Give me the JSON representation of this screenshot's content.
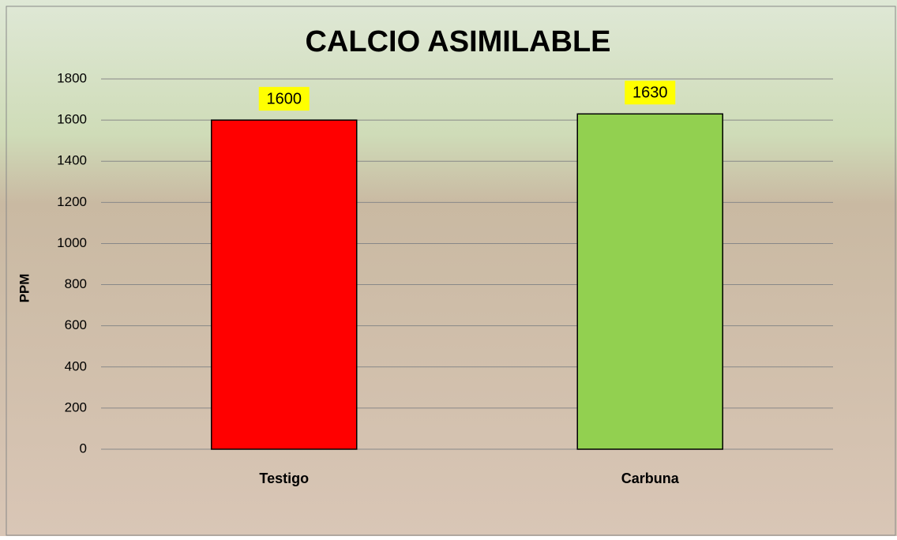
{
  "chart_data": {
    "type": "bar",
    "title": "CALCIO ASIMILABLE",
    "y_label": "PPM",
    "categories": [
      "Testigo",
      "Carbuna"
    ],
    "values": [
      1600,
      1630
    ],
    "colors": [
      "#ff0000",
      "#92d050"
    ],
    "ylim": [
      0,
      1800
    ],
    "yticks": [
      0,
      200,
      400,
      600,
      800,
      1000,
      1200,
      1400,
      1600,
      1800
    ],
    "grid": true
  }
}
